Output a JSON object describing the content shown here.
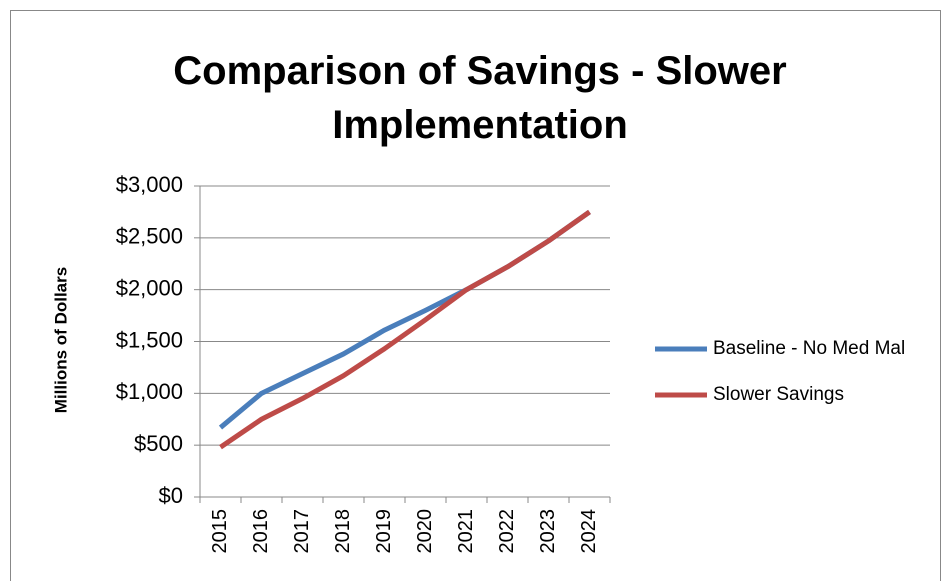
{
  "chart_data": {
    "type": "line",
    "title": "Comparison of Savings - Slower Implementation",
    "y_label": "Millions of Dollars",
    "categories": [
      "2015",
      "2016",
      "2017",
      "2018",
      "2019",
      "2020",
      "2021",
      "2022",
      "2023",
      "2024"
    ],
    "series": [
      {
        "name": "Baseline - No Med Mal",
        "color": "#4a7ebb",
        "values": [
          670,
          1000,
          1190,
          1380,
          1610,
          1800,
          2000,
          2220,
          2470,
          2750
        ]
      },
      {
        "name": "Slower Savings",
        "color": "#be4b48",
        "values": [
          480,
          750,
          950,
          1170,
          1430,
          1710,
          2000,
          2220,
          2470,
          2750
        ]
      }
    ],
    "ylim": [
      0,
      3000
    ],
    "yticks": [
      {
        "value": 0,
        "label": "$0"
      },
      {
        "value": 500,
        "label": "$500"
      },
      {
        "value": 1000,
        "label": "$1,000"
      },
      {
        "value": 1500,
        "label": "$1,500"
      },
      {
        "value": 2000,
        "label": "$2,000"
      },
      {
        "value": 2500,
        "label": "$2,500"
      },
      {
        "value": 3000,
        "label": "$3,000"
      }
    ],
    "grid": true,
    "legend": "right"
  }
}
